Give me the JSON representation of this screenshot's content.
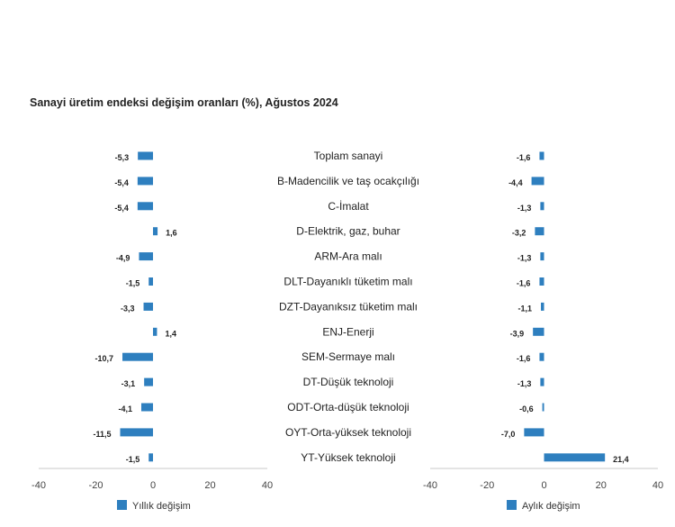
{
  "chart_data": {
    "type": "bar",
    "orientation": "horizontal",
    "title": "Sanayi üretim endeksi değişim oranları (%), Ağustos 2024",
    "categories": [
      "Toplam sanayi",
      "B-Madencilik ve taş ocakçılığı",
      "C-İmalat",
      "D-Elektrik, gaz, buhar",
      "ARM-Ara malı",
      "DLT-Dayanıklı tüketim malı",
      "DZT-Dayanıksız tüketim malı",
      "ENJ-Enerji",
      "SEM-Sermaye malı",
      "DT-Düşük teknoloji",
      "ODT-Orta-düşük teknoloji",
      "OYT-Orta-yüksek teknoloji",
      "YT-Yüksek teknoloji"
    ],
    "series": [
      {
        "name": "Yıllık değişim",
        "values": [
          -5.3,
          -5.4,
          -5.4,
          1.6,
          -4.9,
          -1.5,
          -3.3,
          1.4,
          -10.7,
          -3.1,
          -4.1,
          -11.5,
          -1.5
        ],
        "labels": [
          "-5,3",
          "-5,4",
          "-5,4",
          "1,6",
          "-4,9",
          "-1,5",
          "-3,3",
          "1,4",
          "-10,7",
          "-3,1",
          "-4,1",
          "-11,5",
          "-1,5"
        ],
        "color": "#2e7fbf",
        "xlim": [
          -40,
          40
        ],
        "ticks": [
          "-40",
          "-20",
          "0",
          "20",
          "40"
        ],
        "legend": "bottom-left"
      },
      {
        "name": "Aylık değişim",
        "values": [
          -1.6,
          -4.4,
          -1.3,
          -3.2,
          -1.3,
          -1.6,
          -1.1,
          -3.9,
          -1.6,
          -1.3,
          -0.6,
          -7.0,
          21.4
        ],
        "labels": [
          "-1,6",
          "-4,4",
          "-1,3",
          "-3,2",
          "-1,3",
          "-1,6",
          "-1,1",
          "-3,9",
          "-1,6",
          "-1,3",
          "-0,6",
          "-7,0",
          "21,4"
        ],
        "color": "#2e7fbf",
        "xlim": [
          -40,
          40
        ],
        "ticks": [
          "-40",
          "-20",
          "0",
          "20",
          "40"
        ],
        "legend": "bottom-right"
      }
    ]
  }
}
